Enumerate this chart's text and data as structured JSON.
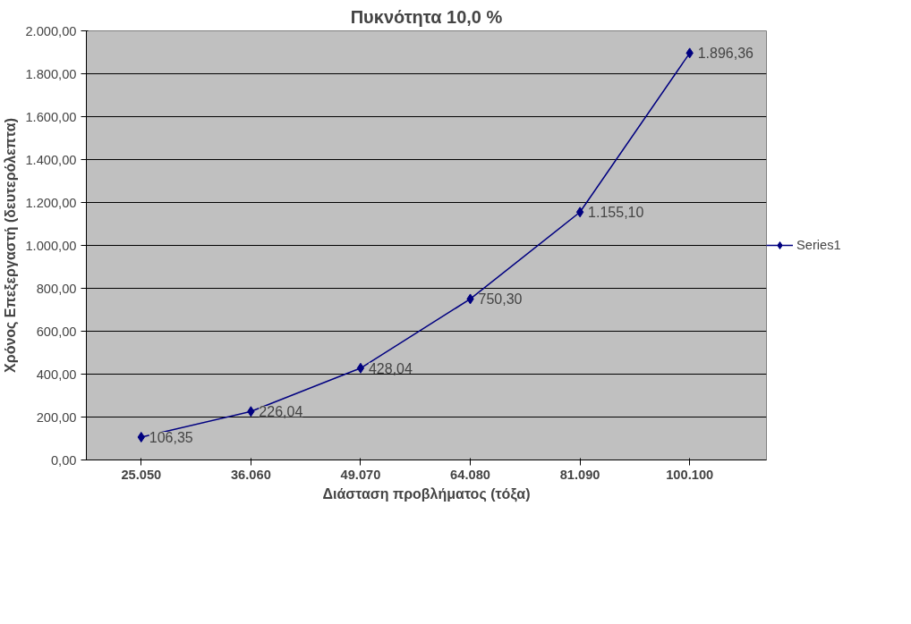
{
  "chart_data": {
    "type": "line",
    "title": "Πυκνότητα 10,0 %",
    "xlabel": "Διάσταση προβλήματος (τόξα)",
    "ylabel": "Χρόνος Επεξεργαστή (δευτερόλεπτα)",
    "categories": [
      "25.050",
      "36.060",
      "49.070",
      "64.080",
      "81.090",
      "100.100"
    ],
    "series": [
      {
        "name": "Series1",
        "color": "#000080",
        "values": [
          106.35,
          226.04,
          428.04,
          750.3,
          1155.1,
          1896.36
        ],
        "value_labels": [
          "106,35",
          "226,04",
          "428,04",
          "750,30",
          "1.155,10",
          "1.896,36"
        ]
      }
    ],
    "ylim": [
      0,
      2000
    ],
    "yticks": [
      {
        "value": 0,
        "label": "0,00"
      },
      {
        "value": 200,
        "label": "200,00"
      },
      {
        "value": 400,
        "label": "400,00"
      },
      {
        "value": 600,
        "label": "600,00"
      },
      {
        "value": 800,
        "label": "800,00"
      },
      {
        "value": 1000,
        "label": "1.000,00"
      },
      {
        "value": 1200,
        "label": "1.200,00"
      },
      {
        "value": 1400,
        "label": "1.400,00"
      },
      {
        "value": 1600,
        "label": "1.600,00"
      },
      {
        "value": 1800,
        "label": "1.800,00"
      },
      {
        "value": 2000,
        "label": "2.000,00"
      }
    ],
    "grid": "y",
    "legend": "right",
    "marker": "diamond",
    "line_style": "solid"
  }
}
